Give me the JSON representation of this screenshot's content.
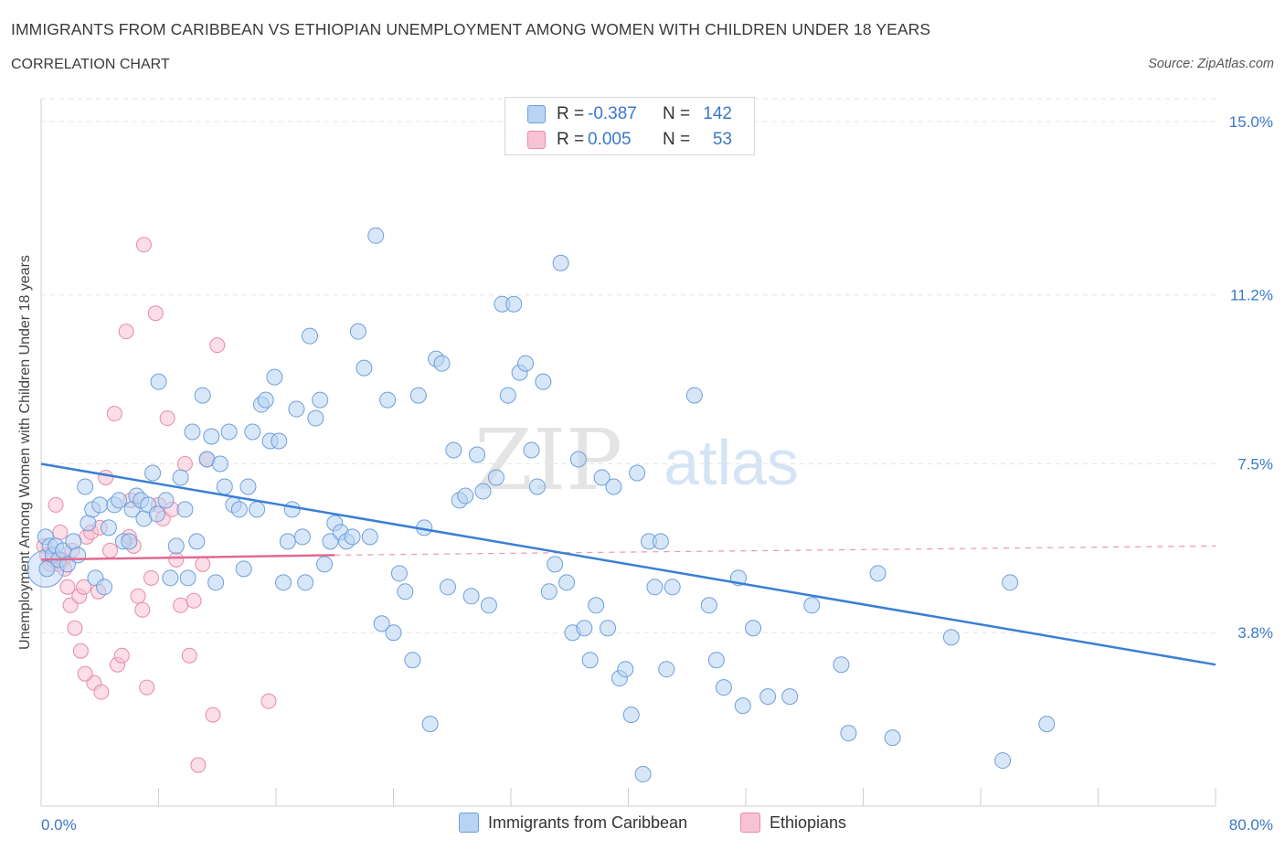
{
  "header": {
    "title": "IMMIGRANTS FROM CARIBBEAN VS ETHIOPIAN UNEMPLOYMENT AMONG WOMEN WITH CHILDREN UNDER 18 YEARS",
    "subtitle": "CORRELATION CHART",
    "source": "Source: ZipAtlas.com"
  },
  "watermark": {
    "zip": "ZIP",
    "atlas": "atlas"
  },
  "legend_stats": {
    "row1": {
      "r_label": "R =",
      "r_value": "-0.387",
      "n_label": "N =",
      "n_value": "142"
    },
    "row2": {
      "r_label": "R =",
      "r_value": "0.005",
      "n_label": "N =",
      "n_value": "53"
    }
  },
  "colors": {
    "blue_fill": "#b8d3f3",
    "blue_stroke": "#6d9fdc",
    "blue_line": "#3a7fd5",
    "pink_fill": "#f7c3d4",
    "pink_stroke": "#e88aa8",
    "pink_line": "#e06a90",
    "tick_label": "#3a78c9",
    "grid": "#e3e3e3"
  },
  "chart_data": {
    "type": "scatter",
    "title": "IMMIGRANTS FROM CARIBBEAN VS ETHIOPIAN UNEMPLOYMENT AMONG WOMEN WITH CHILDREN UNDER 18 YEARS",
    "xlabel": "",
    "ylabel": "Unemployment Among Women with Children Under 18 years",
    "xlim": [
      0,
      80
    ],
    "ylim": [
      0,
      15.5
    ],
    "x_tick_labels": [
      "0.0%",
      "80.0%"
    ],
    "y_ticks": [
      3.8,
      7.5,
      11.2,
      15.0
    ],
    "y_tick_labels": [
      "3.8%",
      "7.5%",
      "11.2%",
      "15.0%"
    ],
    "grid": "horizontal dashed",
    "legend_position": "bottom",
    "series": [
      {
        "name": "Immigrants from Caribbean",
        "color": "blue",
        "trend": {
          "x": [
            0,
            80
          ],
          "y": [
            7.5,
            3.1
          ]
        },
        "points": [
          [
            0.3,
            5.9
          ],
          [
            0.4,
            5.2
          ],
          [
            0.6,
            5.7
          ],
          [
            0.8,
            5.5
          ],
          [
            1.0,
            5.7
          ],
          [
            1.2,
            5.4
          ],
          [
            1.5,
            5.6
          ],
          [
            1.8,
            5.3
          ],
          [
            2.2,
            5.8
          ],
          [
            2.5,
            5.5
          ],
          [
            3.0,
            7.0
          ],
          [
            3.2,
            6.2
          ],
          [
            3.5,
            6.5
          ],
          [
            3.7,
            5.0
          ],
          [
            4.0,
            6.6
          ],
          [
            4.3,
            4.8
          ],
          [
            4.6,
            6.1
          ],
          [
            5.0,
            6.6
          ],
          [
            5.3,
            6.7
          ],
          [
            5.6,
            5.8
          ],
          [
            6.0,
            5.8
          ],
          [
            6.2,
            6.5
          ],
          [
            6.5,
            6.8
          ],
          [
            6.8,
            6.7
          ],
          [
            7.0,
            6.3
          ],
          [
            7.3,
            6.6
          ],
          [
            7.6,
            7.3
          ],
          [
            7.9,
            6.4
          ],
          [
            8.0,
            9.3
          ],
          [
            8.5,
            6.7
          ],
          [
            8.8,
            5.0
          ],
          [
            9.2,
            5.7
          ],
          [
            9.5,
            7.2
          ],
          [
            9.8,
            6.5
          ],
          [
            10.0,
            5.0
          ],
          [
            10.3,
            8.2
          ],
          [
            10.6,
            5.8
          ],
          [
            11.0,
            9.0
          ],
          [
            11.3,
            7.6
          ],
          [
            11.6,
            8.1
          ],
          [
            11.9,
            4.9
          ],
          [
            12.2,
            7.5
          ],
          [
            12.5,
            7.0
          ],
          [
            12.8,
            8.2
          ],
          [
            13.1,
            6.6
          ],
          [
            13.5,
            6.5
          ],
          [
            13.8,
            5.2
          ],
          [
            14.1,
            7.0
          ],
          [
            14.4,
            8.2
          ],
          [
            14.7,
            6.5
          ],
          [
            15.0,
            8.8
          ],
          [
            15.3,
            8.9
          ],
          [
            15.6,
            8.0
          ],
          [
            15.9,
            9.4
          ],
          [
            16.2,
            8.0
          ],
          [
            16.5,
            4.9
          ],
          [
            16.8,
            5.8
          ],
          [
            17.1,
            6.5
          ],
          [
            17.4,
            8.7
          ],
          [
            17.8,
            5.9
          ],
          [
            18.0,
            4.9
          ],
          [
            18.3,
            10.3
          ],
          [
            18.7,
            8.5
          ],
          [
            19.0,
            8.9
          ],
          [
            19.3,
            5.3
          ],
          [
            19.7,
            5.8
          ],
          [
            20.0,
            6.2
          ],
          [
            20.4,
            6.0
          ],
          [
            20.8,
            5.8
          ],
          [
            21.2,
            5.9
          ],
          [
            21.6,
            10.4
          ],
          [
            22.0,
            9.6
          ],
          [
            22.4,
            5.9
          ],
          [
            22.8,
            12.5
          ],
          [
            23.2,
            4.0
          ],
          [
            23.6,
            8.9
          ],
          [
            24.0,
            3.8
          ],
          [
            24.4,
            5.1
          ],
          [
            24.8,
            4.7
          ],
          [
            25.3,
            3.2
          ],
          [
            25.7,
            9.0
          ],
          [
            26.1,
            6.1
          ],
          [
            26.5,
            1.8
          ],
          [
            26.9,
            9.8
          ],
          [
            27.3,
            9.7
          ],
          [
            27.7,
            4.8
          ],
          [
            28.1,
            7.8
          ],
          [
            28.5,
            6.7
          ],
          [
            28.9,
            6.8
          ],
          [
            29.3,
            4.6
          ],
          [
            29.7,
            7.7
          ],
          [
            30.1,
            6.9
          ],
          [
            30.5,
            4.4
          ],
          [
            31.0,
            7.2
          ],
          [
            31.4,
            11.0
          ],
          [
            31.8,
            9.0
          ],
          [
            32.2,
            11.0
          ],
          [
            32.6,
            9.5
          ],
          [
            33.0,
            9.7
          ],
          [
            33.4,
            7.8
          ],
          [
            33.8,
            7.0
          ],
          [
            34.2,
            9.3
          ],
          [
            34.6,
            4.7
          ],
          [
            35.0,
            5.3
          ],
          [
            35.4,
            11.9
          ],
          [
            35.8,
            4.9
          ],
          [
            36.2,
            3.8
          ],
          [
            36.6,
            7.6
          ],
          [
            37.0,
            3.9
          ],
          [
            37.4,
            3.2
          ],
          [
            37.8,
            4.4
          ],
          [
            38.2,
            7.2
          ],
          [
            38.6,
            3.9
          ],
          [
            39.0,
            7.0
          ],
          [
            39.4,
            2.8
          ],
          [
            39.8,
            3.0
          ],
          [
            40.2,
            2.0
          ],
          [
            40.6,
            7.3
          ],
          [
            41.0,
            0.7
          ],
          [
            41.4,
            5.8
          ],
          [
            41.8,
            4.8
          ],
          [
            42.2,
            5.8
          ],
          [
            42.6,
            3.0
          ],
          [
            43.0,
            4.8
          ],
          [
            44.5,
            9.0
          ],
          [
            45.5,
            4.4
          ],
          [
            46.0,
            3.2
          ],
          [
            46.5,
            2.6
          ],
          [
            47.5,
            5.0
          ],
          [
            47.8,
            2.2
          ],
          [
            48.5,
            3.9
          ],
          [
            49.5,
            2.4
          ],
          [
            51.0,
            2.4
          ],
          [
            52.5,
            4.4
          ],
          [
            54.5,
            3.1
          ],
          [
            55.0,
            1.6
          ],
          [
            57.0,
            5.1
          ],
          [
            58.0,
            1.5
          ],
          [
            62.0,
            3.7
          ],
          [
            65.5,
            1.0
          ],
          [
            66.0,
            4.9
          ],
          [
            68.5,
            1.8
          ]
        ]
      },
      {
        "name": "Ethiopians",
        "color": "pink",
        "trend": {
          "x": [
            0,
            20
          ],
          "y": [
            5.4,
            5.5
          ]
        },
        "trend_extension": {
          "x": [
            20,
            80
          ],
          "y": [
            5.5,
            5.7
          ]
        },
        "points": [
          [
            0.2,
            5.7
          ],
          [
            0.4,
            5.5
          ],
          [
            0.6,
            5.3
          ],
          [
            0.8,
            5.4
          ],
          [
            1.0,
            6.6
          ],
          [
            1.2,
            5.3
          ],
          [
            1.5,
            5.4
          ],
          [
            1.8,
            4.8
          ],
          [
            2.0,
            4.4
          ],
          [
            2.3,
            3.9
          ],
          [
            2.6,
            4.6
          ],
          [
            2.9,
            4.8
          ],
          [
            3.1,
            5.9
          ],
          [
            3.4,
            6.0
          ],
          [
            3.6,
            2.7
          ],
          [
            3.9,
            4.7
          ],
          [
            4.1,
            2.5
          ],
          [
            4.4,
            7.2
          ],
          [
            4.7,
            5.6
          ],
          [
            5.0,
            8.6
          ],
          [
            5.2,
            3.1
          ],
          [
            5.5,
            3.3
          ],
          [
            5.8,
            10.4
          ],
          [
            6.0,
            5.9
          ],
          [
            6.3,
            5.7
          ],
          [
            6.6,
            4.6
          ],
          [
            6.9,
            4.3
          ],
          [
            7.2,
            2.6
          ],
          [
            7.5,
            5.0
          ],
          [
            7.8,
            10.8
          ],
          [
            8.0,
            6.6
          ],
          [
            8.3,
            6.3
          ],
          [
            8.6,
            8.5
          ],
          [
            8.9,
            6.5
          ],
          [
            9.2,
            5.4
          ],
          [
            9.5,
            4.4
          ],
          [
            9.8,
            7.5
          ],
          [
            10.1,
            3.3
          ],
          [
            10.4,
            4.5
          ],
          [
            10.7,
            0.9
          ],
          [
            11.0,
            5.3
          ],
          [
            11.3,
            7.6
          ],
          [
            11.7,
            2.0
          ],
          [
            12.0,
            10.1
          ],
          [
            15.5,
            2.3
          ],
          [
            7.0,
            12.3
          ],
          [
            2.7,
            3.4
          ],
          [
            3.0,
            2.9
          ],
          [
            1.6,
            5.2
          ],
          [
            2.1,
            5.6
          ],
          [
            1.3,
            6.0
          ],
          [
            6.1,
            6.7
          ],
          [
            4.0,
            6.1
          ]
        ]
      }
    ]
  },
  "bottom_legend": {
    "item1": "Immigrants from Caribbean",
    "item2": "Ethiopians"
  }
}
